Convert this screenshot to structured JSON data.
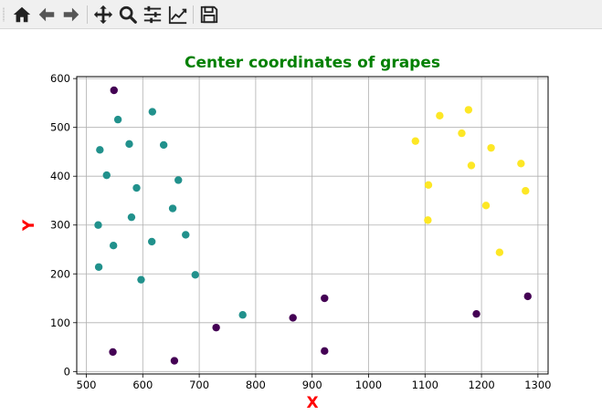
{
  "toolbar": {
    "buttons": [
      {
        "name": "home-button",
        "icon": "home-icon"
      },
      {
        "name": "back-button",
        "icon": "arrow-left-icon"
      },
      {
        "name": "forward-button",
        "icon": "arrow-right-icon"
      },
      {
        "name": "pan-button",
        "icon": "move-icon"
      },
      {
        "name": "zoom-button",
        "icon": "magnifier-icon"
      },
      {
        "name": "configure-subplots-button",
        "icon": "sliders-icon"
      },
      {
        "name": "edit-axes-button",
        "icon": "line-chart-icon"
      },
      {
        "name": "save-button",
        "icon": "floppy-disk-icon"
      }
    ]
  },
  "chart_data": {
    "type": "scatter",
    "title": "Center coordinates of grapes",
    "xlabel": "X",
    "ylabel": "Y",
    "title_color": "#008000",
    "label_color": "#ff0000",
    "xlim": [
      483,
      1318
    ],
    "ylim": [
      -5,
      604
    ],
    "xticks": [
      500,
      600,
      700,
      800,
      900,
      1000,
      1100,
      1200,
      1300
    ],
    "yticks": [
      0,
      100,
      200,
      300,
      400,
      500,
      600
    ],
    "grid": true,
    "clusters": [
      {
        "color": "#440154",
        "points": [
          [
            549,
            576
          ],
          [
            547,
            40
          ],
          [
            656,
            22
          ],
          [
            730,
            90
          ],
          [
            866,
            110
          ],
          [
            922,
            150
          ],
          [
            922,
            42
          ],
          [
            1191,
            118
          ],
          [
            1282,
            154
          ]
        ]
      },
      {
        "color": "#21918c",
        "points": [
          [
            617,
            532
          ],
          [
            556,
            516
          ],
          [
            637,
            464
          ],
          [
            576,
            466
          ],
          [
            524,
            454
          ],
          [
            536,
            402
          ],
          [
            663,
            392
          ],
          [
            589,
            376
          ],
          [
            653,
            334
          ],
          [
            580,
            316
          ],
          [
            521,
            300
          ],
          [
            676,
            280
          ],
          [
            616,
            266
          ],
          [
            548,
            258
          ],
          [
            522,
            214
          ],
          [
            693,
            198
          ],
          [
            597,
            188
          ],
          [
            777,
            116
          ]
        ]
      },
      {
        "color": "#fde725",
        "points": [
          [
            1177,
            536
          ],
          [
            1126,
            524
          ],
          [
            1165,
            488
          ],
          [
            1083,
            472
          ],
          [
            1217,
            458
          ],
          [
            1182,
            422
          ],
          [
            1270,
            426
          ],
          [
            1106,
            382
          ],
          [
            1278,
            370
          ],
          [
            1208,
            340
          ],
          [
            1105,
            310
          ],
          [
            1232,
            244
          ]
        ]
      }
    ]
  }
}
